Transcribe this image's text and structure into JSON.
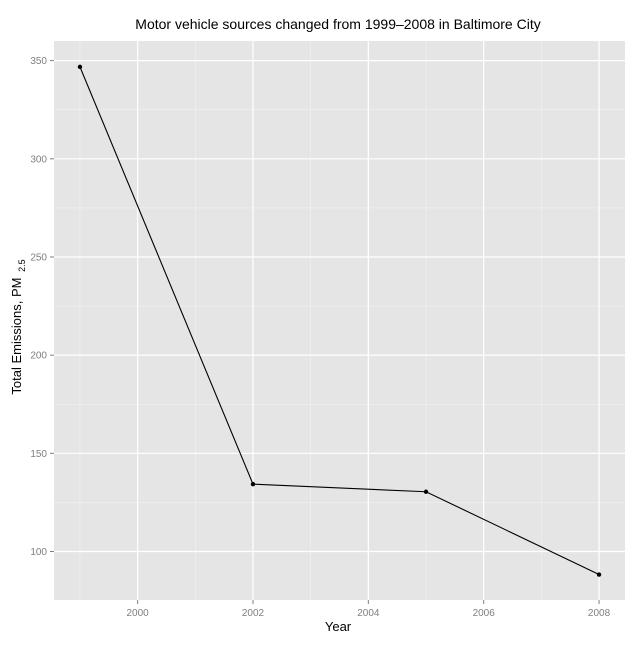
{
  "chart_data": {
    "type": "line",
    "title": "Motor vehicle sources changed from 1999–2008 in Baltimore City",
    "xlabel": "Year",
    "ylabel": "Total Emissions, PM",
    "ylabel_subscript": "2.5",
    "x": [
      1999,
      2002,
      2005,
      2008
    ],
    "series": [
      {
        "values": [
          346.82,
          134.31,
          130.43,
          88.28
        ],
        "color": "#000000"
      }
    ],
    "xlim": [
      1998.55,
      2008.45
    ],
    "ylim": [
      75.3,
      360.0
    ],
    "x_ticks": [
      2000,
      2002,
      2004,
      2006,
      2008
    ],
    "x_tick_labels": [
      "2000",
      "2002",
      "2004",
      "2006",
      "2008"
    ],
    "y_ticks": [
      100,
      150,
      200,
      250,
      300,
      350
    ],
    "y_tick_labels": [
      "100",
      "150",
      "200",
      "250",
      "300",
      "350"
    ],
    "grid": true,
    "legend": "none",
    "panel_background": "#e5e5e5",
    "grid_color": "#ffffff",
    "tick_label_color": "#7f7f7f"
  }
}
